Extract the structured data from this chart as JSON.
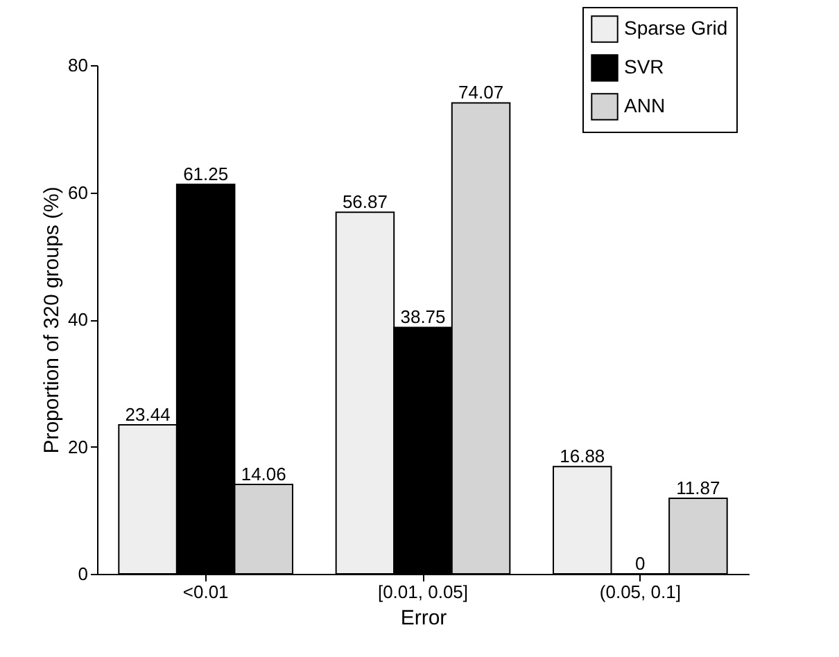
{
  "chart_data": {
    "type": "bar",
    "xlabel": "Error",
    "ylabel": "Proportion of 320 groups (%)",
    "categories": [
      "<0.01",
      "[0.01, 0.05]",
      "(0.05, 0.1]"
    ],
    "series": [
      {
        "name": "Sparse Grid",
        "color": "#eeeeee",
        "values": [
          23.44,
          56.87,
          16.88
        ]
      },
      {
        "name": "SVR",
        "color": "#000000",
        "values": [
          61.25,
          38.75,
          0
        ]
      },
      {
        "name": "ANN",
        "color": "#d4d4d4",
        "values": [
          14.06,
          74.07,
          11.87
        ]
      }
    ],
    "ylim": [
      0,
      80
    ],
    "yticks": [
      0,
      20,
      40,
      60,
      80
    ],
    "grid": false,
    "legend": "top right",
    "data_labels": true
  }
}
